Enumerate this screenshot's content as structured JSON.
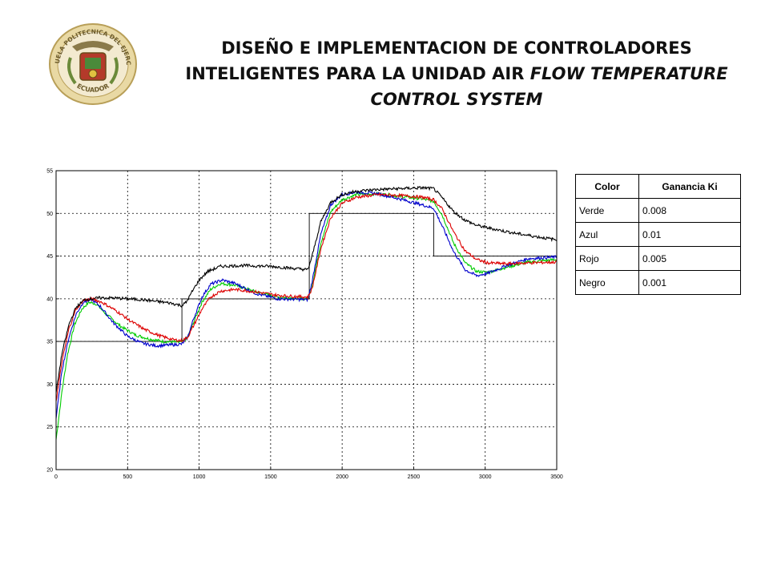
{
  "header": {
    "title_line1": "DISEÑO E IMPLEMENTACION DE CONTROLADORES",
    "title_line2_normal": "INTELIGENTES PARA LA UNIDAD AIR ",
    "title_line2_italic": "FLOW TEMPERATURE",
    "title_line3_italic": "CONTROL SYSTEM"
  },
  "logo": {
    "text_top": "ESCUELA POLITECNICA DEL EJERCITO",
    "text_bottom": "ECUADOR"
  },
  "legend_table": {
    "headers": [
      "Color",
      "Ganancia Ki"
    ],
    "rows": [
      {
        "color": "Verde",
        "gain": "0.008"
      },
      {
        "color": "Azul",
        "gain": "0.01"
      },
      {
        "color": "Rojo",
        "gain": "0.005"
      },
      {
        "color": "Negro",
        "gain": "0.001"
      }
    ]
  },
  "chart_data": {
    "type": "line",
    "xlim": [
      0,
      3500
    ],
    "ylim": [
      20,
      55
    ],
    "xticks": [
      0,
      500,
      1000,
      1500,
      2000,
      2500,
      3000,
      3500
    ],
    "yticks": [
      20,
      25,
      30,
      35,
      40,
      45,
      50,
      55
    ],
    "grid": true,
    "reference": {
      "color": "#000000",
      "points": [
        [
          0,
          35
        ],
        [
          880,
          35
        ],
        [
          880,
          40
        ],
        [
          1770,
          40
        ],
        [
          1770,
          50
        ],
        [
          2640,
          50
        ],
        [
          2640,
          45
        ],
        [
          3500,
          45
        ]
      ]
    },
    "series": [
      {
        "color": "#00cc00",
        "points": [
          [
            0,
            23.5
          ],
          [
            40,
            29
          ],
          [
            80,
            33.5
          ],
          [
            130,
            37
          ],
          [
            180,
            38.8
          ],
          [
            230,
            39.6
          ],
          [
            280,
            39.4
          ],
          [
            350,
            38.2
          ],
          [
            450,
            36.8
          ],
          [
            550,
            35.8
          ],
          [
            650,
            35.3
          ],
          [
            750,
            35.0
          ],
          [
            880,
            34.9
          ],
          [
            920,
            35.5
          ],
          [
            960,
            37.2
          ],
          [
            1020,
            39.6
          ],
          [
            1080,
            41.1
          ],
          [
            1150,
            41.8
          ],
          [
            1250,
            41.6
          ],
          [
            1400,
            40.8
          ],
          [
            1550,
            40.2
          ],
          [
            1760,
            40.0
          ],
          [
            1790,
            41.5
          ],
          [
            1850,
            46.5
          ],
          [
            1920,
            50.2
          ],
          [
            2000,
            51.6
          ],
          [
            2100,
            52.2
          ],
          [
            2250,
            52.3
          ],
          [
            2400,
            52.0
          ],
          [
            2560,
            51.7
          ],
          [
            2640,
            51.4
          ],
          [
            2700,
            49.8
          ],
          [
            2780,
            46.5
          ],
          [
            2860,
            44.2
          ],
          [
            2940,
            43.2
          ],
          [
            3020,
            43.1
          ],
          [
            3150,
            43.7
          ],
          [
            3300,
            44.3
          ],
          [
            3500,
            44.6
          ]
        ]
      },
      {
        "color": "#0000cc",
        "points": [
          [
            0,
            26
          ],
          [
            40,
            31.5
          ],
          [
            90,
            35.5
          ],
          [
            140,
            38.2
          ],
          [
            190,
            39.6
          ],
          [
            250,
            39.9
          ],
          [
            310,
            39.1
          ],
          [
            400,
            37.2
          ],
          [
            500,
            35.6
          ],
          [
            600,
            34.8
          ],
          [
            700,
            34.5
          ],
          [
            800,
            34.6
          ],
          [
            880,
            34.7
          ],
          [
            920,
            35.5
          ],
          [
            960,
            37.6
          ],
          [
            1020,
            40.2
          ],
          [
            1080,
            41.7
          ],
          [
            1160,
            42.2
          ],
          [
            1250,
            41.8
          ],
          [
            1400,
            40.6
          ],
          [
            1550,
            40.0
          ],
          [
            1760,
            39.9
          ],
          [
            1790,
            42.0
          ],
          [
            1850,
            47.5
          ],
          [
            1920,
            51.0
          ],
          [
            2000,
            52.2
          ],
          [
            2100,
            52.5
          ],
          [
            2250,
            52.3
          ],
          [
            2400,
            51.7
          ],
          [
            2560,
            51.0
          ],
          [
            2640,
            50.6
          ],
          [
            2700,
            48.5
          ],
          [
            2780,
            45.5
          ],
          [
            2860,
            43.4
          ],
          [
            2940,
            42.7
          ],
          [
            3020,
            43.0
          ],
          [
            3150,
            43.9
          ],
          [
            3300,
            44.7
          ],
          [
            3500,
            44.9
          ]
        ]
      },
      {
        "color": "#dd0000",
        "points": [
          [
            0,
            28
          ],
          [
            40,
            32.5
          ],
          [
            90,
            36.5
          ],
          [
            140,
            38.8
          ],
          [
            190,
            39.8
          ],
          [
            250,
            40.0
          ],
          [
            320,
            39.6
          ],
          [
            420,
            38.6
          ],
          [
            520,
            37.4
          ],
          [
            620,
            36.4
          ],
          [
            720,
            35.7
          ],
          [
            820,
            35.2
          ],
          [
            880,
            35.1
          ],
          [
            920,
            35.5
          ],
          [
            960,
            36.8
          ],
          [
            1020,
            38.8
          ],
          [
            1080,
            40.2
          ],
          [
            1150,
            40.9
          ],
          [
            1250,
            41.1
          ],
          [
            1400,
            40.8
          ],
          [
            1550,
            40.4
          ],
          [
            1760,
            40.2
          ],
          [
            1790,
            41.2
          ],
          [
            1850,
            45.8
          ],
          [
            1920,
            49.5
          ],
          [
            2000,
            51.2
          ],
          [
            2100,
            51.9
          ],
          [
            2250,
            52.2
          ],
          [
            2400,
            52.1
          ],
          [
            2560,
            51.9
          ],
          [
            2640,
            51.6
          ],
          [
            2700,
            50.5
          ],
          [
            2780,
            47.8
          ],
          [
            2860,
            45.6
          ],
          [
            2940,
            44.6
          ],
          [
            3020,
            44.2
          ],
          [
            3150,
            44.1
          ],
          [
            3300,
            44.2
          ],
          [
            3500,
            44.3
          ]
        ]
      },
      {
        "color": "#000000",
        "points": [
          [
            0,
            29
          ],
          [
            40,
            33.5
          ],
          [
            90,
            37
          ],
          [
            140,
            39.0
          ],
          [
            200,
            39.9
          ],
          [
            300,
            40.1
          ],
          [
            400,
            40.1
          ],
          [
            500,
            40.0
          ],
          [
            600,
            39.9
          ],
          [
            700,
            39.7
          ],
          [
            800,
            39.5
          ],
          [
            880,
            39.2
          ],
          [
            910,
            39.6
          ],
          [
            950,
            40.8
          ],
          [
            1000,
            42.2
          ],
          [
            1060,
            43.2
          ],
          [
            1150,
            43.8
          ],
          [
            1300,
            43.9
          ],
          [
            1500,
            43.8
          ],
          [
            1700,
            43.5
          ],
          [
            1760,
            43.4
          ],
          [
            1790,
            45.0
          ],
          [
            1850,
            49.0
          ],
          [
            1920,
            51.3
          ],
          [
            2000,
            52.2
          ],
          [
            2100,
            52.6
          ],
          [
            2250,
            52.8
          ],
          [
            2400,
            52.9
          ],
          [
            2560,
            53.0
          ],
          [
            2640,
            52.9
          ],
          [
            2700,
            51.8
          ],
          [
            2780,
            50.2
          ],
          [
            2860,
            49.2
          ],
          [
            2940,
            48.6
          ],
          [
            3050,
            48.2
          ],
          [
            3200,
            47.7
          ],
          [
            3350,
            47.3
          ],
          [
            3500,
            46.9
          ]
        ]
      }
    ]
  }
}
